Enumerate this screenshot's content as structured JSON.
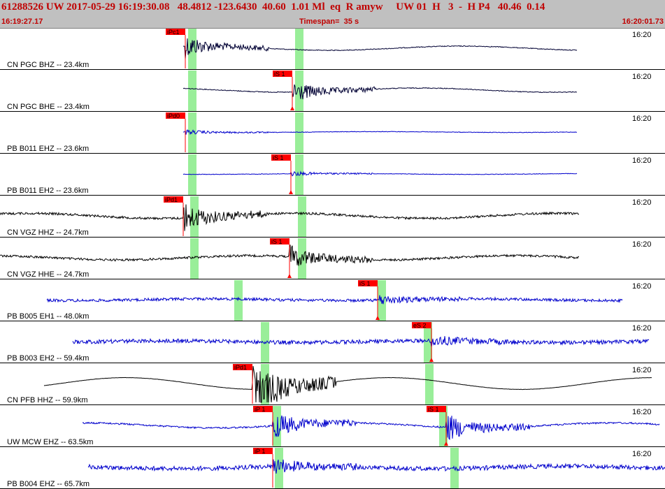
{
  "header": {
    "title": "61288526 UW 2017-05-29 16:19:30.08   48.4812 -123.6430  40.60  1.01 Ml  eq  R amyw     UW 01  H   3  -  H P4   40.46  0.14",
    "start_time": "16:19:27.17",
    "timespan": "Timespan=  35 s",
    "end_time": "16:20:01.73",
    "text_color": "#c00000",
    "background_color": "#c0c0c0"
  },
  "traces": [
    {
      "label": "CN PGC BHZ -- 23.4km",
      "time": "16:20",
      "color": "#000033",
      "amp": 5,
      "noise": 0.15,
      "start": 262,
      "end": 825,
      "picks": [
        {
          "text": "iPc1",
          "x": 265,
          "type": "P"
        }
      ],
      "marks": [
        275,
        428
      ]
    },
    {
      "label": "CN PGC BHE -- 23.4km",
      "time": "16:20",
      "color": "#000033",
      "amp": 5,
      "noise": 0.15,
      "start": 262,
      "end": 825,
      "picks": [
        {
          "text": "iS 1",
          "x": 418,
          "type": "S"
        }
      ],
      "marks": [
        275,
        428
      ]
    },
    {
      "label": "PB B011 EHZ -- 23.6km",
      "time": "16:20",
      "color": "#0000cc",
      "amp": 1,
      "noise": 0.1,
      "start": 262,
      "end": 825,
      "picks": [
        {
          "text": "iPd0",
          "x": 265,
          "type": "P"
        }
      ],
      "marks": [
        275,
        428
      ]
    },
    {
      "label": "PB B011 EH2 -- 23.6km",
      "time": "16:20",
      "color": "#0000cc",
      "amp": 1,
      "noise": 0.1,
      "start": 262,
      "end": 825,
      "picks": [
        {
          "text": "iS 1",
          "x": 416,
          "type": "S"
        }
      ],
      "marks": [
        275,
        428
      ]
    },
    {
      "label": "CN VGZ HHZ -- 24.7km",
      "time": "16:20",
      "color": "#000000",
      "amp": 6,
      "noise": 0.4,
      "start": 0,
      "end": 828,
      "picks": [
        {
          "text": "iPd1",
          "x": 262,
          "type": "P"
        }
      ],
      "marks": [
        278,
        432
      ]
    },
    {
      "label": "CN VGZ HHE -- 24.7km",
      "time": "16:20",
      "color": "#000000",
      "amp": 5,
      "noise": 0.4,
      "start": 0,
      "end": 828,
      "picks": [
        {
          "text": "iS 1",
          "x": 414,
          "type": "S"
        }
      ],
      "marks": [
        278,
        432
      ]
    },
    {
      "label": "PB B005 EH1 -- 48.0km",
      "time": "16:20",
      "color": "#0000cc",
      "amp": 2,
      "noise": 0.5,
      "start": 67,
      "end": 890,
      "picks": [
        {
          "text": "iS 1",
          "x": 540,
          "type": "S"
        }
      ],
      "marks": [
        341,
        546
      ]
    },
    {
      "label": "PB B003 EH2 -- 59.4km",
      "time": "16:20",
      "color": "#0000cc",
      "amp": 2,
      "noise": 0.7,
      "start": 104,
      "end": 928,
      "picks": [
        {
          "text": "eS 2",
          "x": 617,
          "type": "S"
        }
      ],
      "marks": [
        379,
        612
      ]
    },
    {
      "label": "CN PFB HHZ -- 59.9km",
      "time": "16:20",
      "color": "#000000",
      "amp": 14,
      "noise": 0.05,
      "start": 63,
      "end": 932,
      "picks": [
        {
          "text": "iPd1",
          "x": 361,
          "type": "P"
        }
      ],
      "marks": [
        379,
        614
      ]
    },
    {
      "label": "UW MCW EHZ -- 63.5km",
      "time": "16:20",
      "color": "#0000cc",
      "amp": 6,
      "noise": 0.3,
      "start": 118,
      "end": 943,
      "picks": [
        {
          "text": "iP 1",
          "x": 390,
          "type": "P"
        },
        {
          "text": "iS 1",
          "x": 638,
          "type": "S"
        }
      ],
      "marks": [
        396,
        634
      ]
    },
    {
      "label": "PB B004 EHZ -- 65.7km",
      "time": "16:20",
      "color": "#0000cc",
      "amp": 3,
      "noise": 0.8,
      "start": 126,
      "end": 951,
      "picks": [
        {
          "text": "iP 1",
          "x": 390,
          "type": "P"
        }
      ],
      "marks": [
        399,
        650
      ]
    }
  ],
  "colors": {
    "pick_flag": "#ff0000",
    "window_band": "#99ee99",
    "divider": "#000000"
  }
}
